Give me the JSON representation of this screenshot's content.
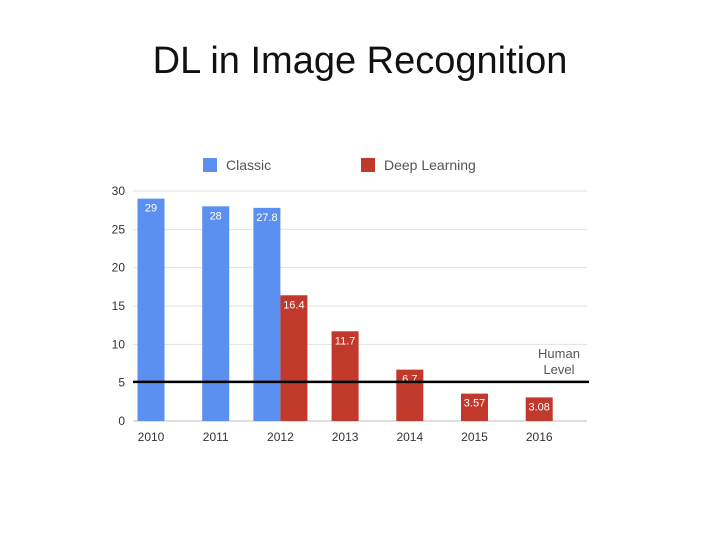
{
  "slide": {
    "title": "DL in Image Recognition"
  },
  "colors": {
    "classic": "#5b8ff0",
    "deep_learning": "#c0392b",
    "grid": "#e2e2e2",
    "human_line": "#000000"
  },
  "chart_data": {
    "type": "bar",
    "title": "",
    "xlabel": "",
    "ylabel": "",
    "categories": [
      "2010",
      "2011",
      "2012",
      "2013",
      "2014",
      "2015",
      "2016"
    ],
    "ylim": [
      0,
      30
    ],
    "yticks": [
      0,
      5,
      10,
      15,
      20,
      25,
      30
    ],
    "grid": true,
    "legend_position": "top",
    "series": [
      {
        "name": "Classic",
        "values": [
          29,
          28,
          27.8,
          null,
          null,
          null,
          null
        ]
      },
      {
        "name": "Deep Learning",
        "values": [
          null,
          null,
          16.4,
          11.7,
          6.7,
          3.57,
          3.08
        ]
      }
    ],
    "data_labels": {
      "Classic": [
        "29",
        "28",
        "27.8",
        null,
        null,
        null,
        null
      ],
      "Deep Learning": [
        null,
        null,
        "16.4",
        "11.7",
        "6.7",
        "3.57",
        "3.08"
      ]
    },
    "reference_line": {
      "value": 5.1,
      "label_lines": [
        "Human",
        "Level"
      ]
    }
  }
}
